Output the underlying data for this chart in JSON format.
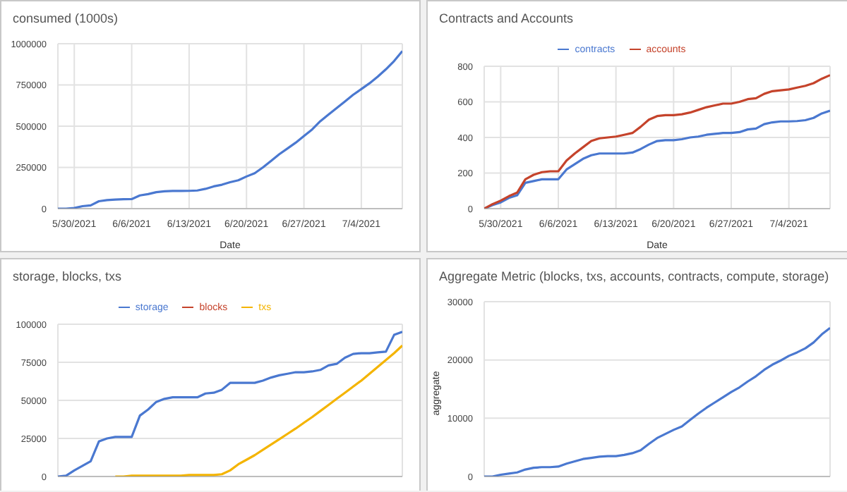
{
  "chart_data": [
    {
      "type": "line",
      "title": "consumed (1000s)",
      "xlabel": "Date",
      "grid": true,
      "legend": false,
      "x": [
        "2021-05-28",
        "2021-05-29",
        "2021-05-30",
        "2021-05-31",
        "2021-06-01",
        "2021-06-02",
        "2021-06-03",
        "2021-06-04",
        "2021-06-05",
        "2021-06-06",
        "2021-06-07",
        "2021-06-08",
        "2021-06-09",
        "2021-06-10",
        "2021-06-11",
        "2021-06-12",
        "2021-06-13",
        "2021-06-14",
        "2021-06-15",
        "2021-06-16",
        "2021-06-17",
        "2021-06-18",
        "2021-06-19",
        "2021-06-20",
        "2021-06-21",
        "2021-06-22",
        "2021-06-23",
        "2021-06-24",
        "2021-06-25",
        "2021-06-26",
        "2021-06-27",
        "2021-06-28",
        "2021-06-29",
        "2021-06-30",
        "2021-07-01",
        "2021-07-02",
        "2021-07-03",
        "2021-07-04",
        "2021-07-05",
        "2021-07-06",
        "2021-07-07",
        "2021-07-08",
        "2021-07-09"
      ],
      "series": [
        {
          "color": "#4a78d0",
          "values": [
            0,
            0,
            4000,
            15000,
            20000,
            45000,
            52000,
            55000,
            57000,
            58000,
            80000,
            88000,
            100000,
            105000,
            107000,
            107000,
            108000,
            110000,
            120000,
            135000,
            145000,
            160000,
            172000,
            195000,
            215000,
            250000,
            290000,
            330000,
            365000,
            400000,
            440000,
            480000,
            530000,
            570000,
            610000,
            650000,
            690000,
            725000,
            760000,
            800000,
            845000,
            895000,
            955000
          ]
        }
      ],
      "xlim": [
        "2021-05-28",
        "2021-07-09"
      ],
      "xticks": [
        {
          "value": "2021-05-30",
          "label": "5/30/2021"
        },
        {
          "value": "2021-06-06",
          "label": "6/6/2021"
        },
        {
          "value": "2021-06-13",
          "label": "6/13/2021"
        },
        {
          "value": "2021-06-20",
          "label": "6/20/2021"
        },
        {
          "value": "2021-06-27",
          "label": "6/27/2021"
        },
        {
          "value": "2021-07-04",
          "label": "7/4/2021"
        }
      ],
      "ylim": [
        0,
        1000000
      ],
      "yticks": [
        0,
        250000,
        500000,
        750000,
        1000000
      ]
    },
    {
      "type": "line",
      "title": "Contracts and Accounts",
      "xlabel": "Date",
      "grid": true,
      "legend": "top",
      "x": [
        "2021-05-28",
        "2021-05-29",
        "2021-05-30",
        "2021-05-31",
        "2021-06-01",
        "2021-06-02",
        "2021-06-03",
        "2021-06-04",
        "2021-06-05",
        "2021-06-06",
        "2021-06-07",
        "2021-06-08",
        "2021-06-09",
        "2021-06-10",
        "2021-06-11",
        "2021-06-12",
        "2021-06-13",
        "2021-06-14",
        "2021-06-15",
        "2021-06-16",
        "2021-06-17",
        "2021-06-18",
        "2021-06-19",
        "2021-06-20",
        "2021-06-21",
        "2021-06-22",
        "2021-06-23",
        "2021-06-24",
        "2021-06-25",
        "2021-06-26",
        "2021-06-27",
        "2021-06-28",
        "2021-06-29",
        "2021-06-30",
        "2021-07-01",
        "2021-07-02",
        "2021-07-03",
        "2021-07-04",
        "2021-07-05",
        "2021-07-06",
        "2021-07-07",
        "2021-07-08",
        "2021-07-09"
      ],
      "series": [
        {
          "name": "contracts",
          "color": "#4a78d0",
          "values": [
            0,
            20,
            35,
            60,
            75,
            145,
            155,
            165,
            165,
            165,
            220,
            250,
            280,
            300,
            310,
            310,
            310,
            310,
            315,
            335,
            360,
            380,
            385,
            385,
            390,
            400,
            405,
            415,
            420,
            425,
            425,
            430,
            445,
            450,
            475,
            485,
            490,
            490,
            492,
            497,
            510,
            535,
            550
          ]
        },
        {
          "name": "accounts",
          "color": "#c5432b",
          "values": [
            0,
            25,
            45,
            70,
            90,
            165,
            190,
            205,
            210,
            210,
            270,
            310,
            345,
            380,
            395,
            400,
            405,
            415,
            425,
            460,
            500,
            520,
            525,
            525,
            530,
            540,
            555,
            570,
            580,
            590,
            590,
            600,
            615,
            620,
            645,
            660,
            665,
            670,
            680,
            690,
            705,
            730,
            750
          ]
        }
      ],
      "xlim": [
        "2021-05-28",
        "2021-07-09"
      ],
      "xticks": [
        {
          "value": "2021-05-30",
          "label": "5/30/2021"
        },
        {
          "value": "2021-06-06",
          "label": "6/6/2021"
        },
        {
          "value": "2021-06-13",
          "label": "6/13/2021"
        },
        {
          "value": "2021-06-20",
          "label": "6/20/2021"
        },
        {
          "value": "2021-06-27",
          "label": "6/27/2021"
        },
        {
          "value": "2021-07-04",
          "label": "7/4/2021"
        }
      ],
      "ylim": [
        0,
        800
      ],
      "yticks": [
        0,
        200,
        400,
        600,
        800
      ]
    },
    {
      "type": "line",
      "title": "storage, blocks, txs",
      "grid": true,
      "legend": "top",
      "tick_labels": "y",
      "x": [
        "2021-05-28",
        "2021-05-29",
        "2021-05-30",
        "2021-05-31",
        "2021-06-01",
        "2021-06-02",
        "2021-06-03",
        "2021-06-04",
        "2021-06-05",
        "2021-06-06",
        "2021-06-07",
        "2021-06-08",
        "2021-06-09",
        "2021-06-10",
        "2021-06-11",
        "2021-06-12",
        "2021-06-13",
        "2021-06-14",
        "2021-06-15",
        "2021-06-16",
        "2021-06-17",
        "2021-06-18",
        "2021-06-19",
        "2021-06-20",
        "2021-06-21",
        "2021-06-22",
        "2021-06-23",
        "2021-06-24",
        "2021-06-25",
        "2021-06-26",
        "2021-06-27",
        "2021-06-28",
        "2021-06-29",
        "2021-06-30",
        "2021-07-01",
        "2021-07-02",
        "2021-07-03",
        "2021-07-04",
        "2021-07-05",
        "2021-07-06",
        "2021-07-07",
        "2021-07-08",
        "2021-07-09"
      ],
      "series": [
        {
          "name": "storage",
          "color": "#4a78d0",
          "values": [
            0,
            500,
            4000,
            7000,
            10000,
            23000,
            25000,
            26000,
            26000,
            26000,
            40000,
            44000,
            49000,
            51000,
            52000,
            52000,
            52000,
            52000,
            54500,
            55000,
            57000,
            61500,
            61500,
            61500,
            61500,
            63000,
            65000,
            66500,
            67500,
            68500,
            68500,
            69000,
            70000,
            73000,
            74000,
            78000,
            80500,
            81000,
            81000,
            81500,
            82000,
            93000,
            95000
          ]
        },
        {
          "name": "blocks",
          "color": "#c5432b",
          "values": [
            null,
            null,
            null,
            null,
            null,
            null,
            null,
            null,
            null,
            null,
            null,
            null,
            null,
            null,
            null,
            null,
            null,
            null,
            null,
            null,
            null,
            null,
            null,
            null,
            null,
            null,
            null,
            null,
            null,
            null,
            null,
            null,
            null,
            null,
            null,
            null,
            null,
            null,
            null,
            null,
            null,
            null,
            null
          ]
        },
        {
          "name": "txs",
          "color": "#f4b400",
          "values": [
            null,
            null,
            null,
            null,
            null,
            null,
            null,
            0,
            0,
            500,
            500,
            500,
            500,
            500,
            500,
            500,
            1000,
            1000,
            1000,
            1000,
            1500,
            4000,
            8000,
            11000,
            14000,
            17500,
            21000,
            24500,
            28000,
            31500,
            35300,
            39000,
            43000,
            47000,
            51000,
            55000,
            59000,
            63000,
            67500,
            72000,
            76500,
            81000,
            86000
          ]
        }
      ],
      "xlim": [
        "2021-05-28",
        "2021-07-09"
      ],
      "xticks": [
        {
          "value": "2021-05-30",
          "label": null
        },
        {
          "value": "2021-06-06",
          "label": null
        },
        {
          "value": "2021-06-13",
          "label": null
        },
        {
          "value": "2021-06-20",
          "label": null
        },
        {
          "value": "2021-06-27",
          "label": null
        },
        {
          "value": "2021-07-04",
          "label": null
        }
      ],
      "ylim": [
        0,
        100000
      ],
      "yticks": [
        0,
        25000,
        50000,
        75000,
        100000
      ]
    },
    {
      "type": "line",
      "title": "Aggregate Metric (blocks, txs, accounts, contracts, compute, storage)",
      "ylabel": "aggregate",
      "grid": true,
      "legend": false,
      "tick_labels": "y",
      "x": [
        "2021-05-28",
        "2021-05-29",
        "2021-05-30",
        "2021-05-31",
        "2021-06-01",
        "2021-06-02",
        "2021-06-03",
        "2021-06-04",
        "2021-06-05",
        "2021-06-06",
        "2021-06-07",
        "2021-06-08",
        "2021-06-09",
        "2021-06-10",
        "2021-06-11",
        "2021-06-12",
        "2021-06-13",
        "2021-06-14",
        "2021-06-15",
        "2021-06-16",
        "2021-06-17",
        "2021-06-18",
        "2021-06-19",
        "2021-06-20",
        "2021-06-21",
        "2021-06-22",
        "2021-06-23",
        "2021-06-24",
        "2021-06-25",
        "2021-06-26",
        "2021-06-27",
        "2021-06-28",
        "2021-06-29",
        "2021-06-30",
        "2021-07-01",
        "2021-07-02",
        "2021-07-03",
        "2021-07-04",
        "2021-07-05",
        "2021-07-06",
        "2021-07-07",
        "2021-07-08",
        "2021-07-09"
      ],
      "series": [
        {
          "color": "#4a78d0",
          "values": [
            0,
            0,
            300,
            500,
            700,
            1200,
            1500,
            1600,
            1600,
            1700,
            2200,
            2600,
            3000,
            3200,
            3400,
            3500,
            3500,
            3700,
            4000,
            4500,
            5600,
            6600,
            7300,
            8000,
            8600,
            9700,
            10800,
            11800,
            12700,
            13600,
            14500,
            15300,
            16300,
            17200,
            18300,
            19200,
            19900,
            20700,
            21300,
            22000,
            23000,
            24400,
            25500
          ]
        }
      ],
      "xlim": [
        "2021-05-28",
        "2021-07-09"
      ],
      "xticks": [
        {
          "value": "2021-05-30",
          "label": null
        },
        {
          "value": "2021-06-06",
          "label": null
        },
        {
          "value": "2021-06-13",
          "label": null
        },
        {
          "value": "2021-06-20",
          "label": null
        },
        {
          "value": "2021-06-27",
          "label": null
        },
        {
          "value": "2021-07-04",
          "label": null
        }
      ],
      "ylim": [
        0,
        30000
      ],
      "yticks": [
        0,
        10000,
        20000,
        30000
      ]
    }
  ]
}
